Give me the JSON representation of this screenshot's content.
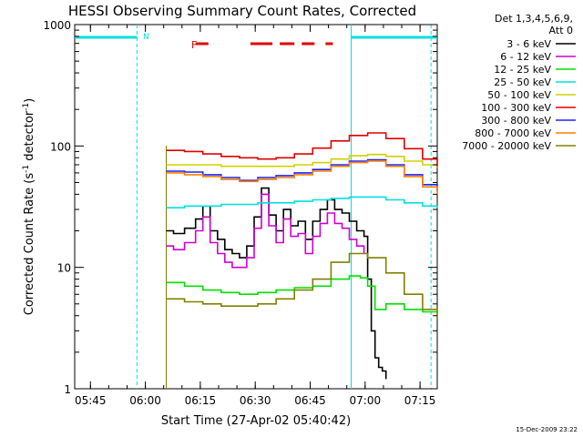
{
  "chart_data": {
    "type": "line",
    "title": "HESSI Observing Summary Count Rates, Corrected",
    "xlabel": "Start Time (27-Apr-02 05:40:42)",
    "ylabel_main": "Corrected Count Rate (s",
    "ylabel_sup1": "-1",
    "ylabel_mid": " detector",
    "ylabel_sup2": "-1",
    "ylabel_end": ")",
    "ylog": true,
    "ylim": [
      1,
      1000
    ],
    "xlim_minutes": [
      0,
      99
    ],
    "x_unit": "minutes since 05:40:42",
    "x_ticks": [
      {
        "label": "05:45",
        "t": 4.3
      },
      {
        "label": "06:00",
        "t": 19.3
      },
      {
        "label": "06:15",
        "t": 34.3
      },
      {
        "label": "06:30",
        "t": 49.3
      },
      {
        "label": "06:45",
        "t": 64.3
      },
      {
        "label": "07:00",
        "t": 79.3
      },
      {
        "label": "07:15",
        "t": 94.3
      }
    ],
    "y_ticks": [
      {
        "label": "1",
        "v": 1
      },
      {
        "label": "10",
        "v": 10
      },
      {
        "label": "100",
        "v": 100
      },
      {
        "label": "1000",
        "v": 1000
      }
    ],
    "legend_title_1": "Det 1,3,4,5,6,9,",
    "legend_title_2": "Att 0",
    "legend_placement": "right",
    "series": [
      {
        "name": "3 - 6 keV",
        "color": "#000000",
        "x": [
          25,
          27,
          30,
          33,
          35,
          37,
          39,
          41,
          43,
          45,
          47,
          49,
          51,
          53,
          55,
          57,
          59,
          61,
          63,
          65,
          67,
          69,
          71,
          73,
          75,
          77,
          79,
          80,
          81,
          82,
          83,
          84,
          85
        ],
        "y": [
          20,
          19,
          21,
          25,
          32,
          20,
          17,
          14,
          13,
          12,
          15,
          26,
          45,
          27,
          20,
          30,
          22,
          24,
          17,
          24,
          30,
          36,
          30,
          28,
          24,
          20,
          18,
          8,
          3,
          1.8,
          1.5,
          1.4,
          1.2
        ]
      },
      {
        "name": "6 - 12 keV",
        "color": "#d000d0",
        "x": [
          25,
          27,
          30,
          33,
          35,
          37,
          39,
          41,
          43,
          45,
          47,
          49,
          51,
          53,
          55,
          57,
          59,
          61,
          63,
          65,
          67,
          69,
          71,
          73,
          75,
          77,
          79
        ],
        "y": [
          15,
          14,
          16,
          20,
          26,
          16,
          13,
          11,
          10,
          10,
          12,
          21,
          40,
          22,
          16,
          25,
          18,
          19,
          13,
          18,
          23,
          28,
          23,
          21,
          17,
          15,
          13
        ]
      },
      {
        "name": "12 - 25 keV",
        "color": "#00e000",
        "x": [
          25,
          30,
          35,
          40,
          45,
          50,
          55,
          60,
          65,
          70,
          75,
          78,
          80,
          82,
          85,
          90,
          95,
          99
        ],
        "y": [
          7.5,
          7,
          6.5,
          6.2,
          6,
          6.2,
          6.5,
          6.8,
          7,
          8,
          8.5,
          8.2,
          7,
          4.5,
          5,
          4.5,
          4.3,
          4.2
        ]
      },
      {
        "name": "25 - 50 keV",
        "color": "#00e0e0",
        "x": [
          25,
          30,
          35,
          40,
          45,
          50,
          55,
          60,
          65,
          70,
          75,
          80,
          85,
          90,
          95,
          99
        ],
        "y": [
          31,
          32,
          32,
          33,
          33,
          34,
          34,
          35,
          36,
          37,
          38,
          38,
          36,
          34,
          32,
          31
        ]
      },
      {
        "name": "50 - 100 keV",
        "color": "#d0d000",
        "x": [
          25,
          30,
          35,
          40,
          45,
          50,
          55,
          60,
          65,
          70,
          75,
          80,
          85,
          90,
          95,
          99
        ],
        "y": [
          70,
          70,
          70,
          68,
          68,
          68,
          68,
          70,
          73,
          78,
          83,
          85,
          82,
          75,
          70,
          67
        ]
      },
      {
        "name": "100 - 300 keV",
        "color": "#e00000",
        "x": [
          25,
          30,
          35,
          40,
          45,
          50,
          55,
          60,
          65,
          70,
          75,
          80,
          85,
          90,
          95,
          99
        ],
        "y": [
          92,
          90,
          86,
          82,
          80,
          78,
          80,
          86,
          96,
          110,
          122,
          128,
          115,
          95,
          78,
          68
        ]
      },
      {
        "name": "300 - 800 keV",
        "color": "#2020ff",
        "x": [
          25,
          30,
          35,
          40,
          45,
          50,
          55,
          60,
          65,
          70,
          75,
          80,
          85,
          90,
          95,
          99
        ],
        "y": [
          62,
          61,
          58,
          55,
          52,
          55,
          57,
          60,
          64,
          70,
          75,
          77,
          70,
          58,
          48,
          42
        ]
      },
      {
        "name": "800 - 7000 keV",
        "color": "#ff8000",
        "x": [
          25,
          30,
          35,
          40,
          45,
          50,
          55,
          60,
          65,
          70,
          75,
          80,
          85,
          90,
          95,
          99
        ],
        "y": [
          60,
          58,
          56,
          53,
          51,
          53,
          55,
          58,
          62,
          68,
          73,
          75,
          68,
          56,
          46,
          40
        ]
      },
      {
        "name": "7000 - 20000 keV",
        "color": "#808000",
        "x": [
          25,
          30,
          35,
          40,
          45,
          50,
          55,
          60,
          65,
          70,
          75,
          80,
          85,
          90,
          95,
          99
        ],
        "y": [
          5.5,
          5.2,
          5,
          4.8,
          4.8,
          5,
          5.5,
          6.5,
          8,
          11,
          13,
          12,
          9,
          6,
          4.5,
          3.8
        ]
      }
    ],
    "annotations": {
      "night_label": "N",
      "flare_label": "F",
      "night_color": "#00e0e0",
      "flare_color": "#e00000"
    },
    "timestamp": "15-Dec-2009 23:22"
  }
}
